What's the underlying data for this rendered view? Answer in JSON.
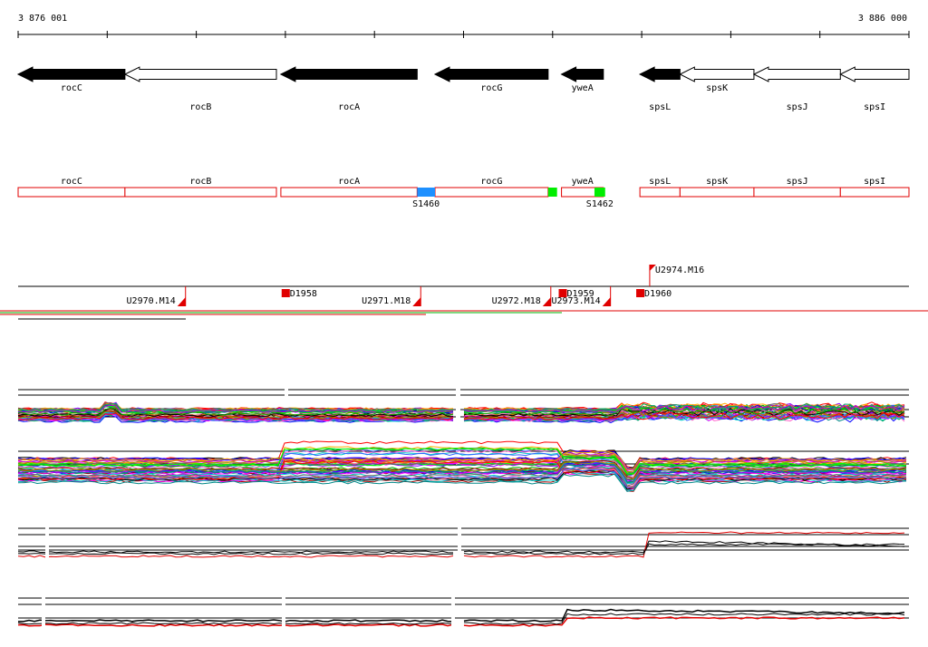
{
  "coords": {
    "start": "3 876 001",
    "end": "3 886 000"
  },
  "genes": [
    {
      "name": "rocC",
      "strand": "-",
      "style": "filled",
      "start": 3876001,
      "end": 3877200
    },
    {
      "name": "rocB",
      "strand": "-",
      "style": "open",
      "start": 3877200,
      "end": 3878900
    },
    {
      "name": "rocA",
      "strand": "-",
      "style": "filled",
      "start": 3878950,
      "end": 3880480
    },
    {
      "name": "rocG",
      "strand": "-",
      "style": "filled",
      "start": 3880680,
      "end": 3881950
    },
    {
      "name": "yweA",
      "strand": "-",
      "style": "filled",
      "start": 3882100,
      "end": 3882570
    },
    {
      "name": "spsL",
      "strand": "-",
      "style": "filled",
      "start": 3882980,
      "end": 3883430
    },
    {
      "name": "spsK",
      "strand": "-",
      "style": "open",
      "start": 3883430,
      "end": 3884260
    },
    {
      "name": "spsJ",
      "strand": "-",
      "style": "open",
      "start": 3884260,
      "end": 3885230
    },
    {
      "name": "spsI",
      "strand": "-",
      "style": "open",
      "start": 3885230,
      "end": 3886000
    }
  ],
  "segments": [
    {
      "label": "S1460",
      "color": "#1e90ff",
      "start": 3880480,
      "end": 3880680
    },
    {
      "label": "",
      "color": "#00ee00",
      "start": 3881950,
      "end": 3882050
    },
    {
      "label": "S1462",
      "color": "#00ee00",
      "start": 3882470,
      "end": 3882590
    }
  ],
  "upstream": [
    {
      "label": "U2970.M14",
      "pos": 3877880
    },
    {
      "label": "U2971.M18",
      "pos": 3880520
    },
    {
      "label": "U2972.M18",
      "pos": 3881980
    },
    {
      "label": "U2973.M14",
      "pos": 3882650
    },
    {
      "label": "U2974.M16",
      "pos": 3883090
    }
  ],
  "downstream": [
    {
      "label": "D1958",
      "pos": 3879030
    },
    {
      "label": "D1959",
      "pos": 3882140
    },
    {
      "label": "D1960",
      "pos": 3883010
    }
  ]
}
